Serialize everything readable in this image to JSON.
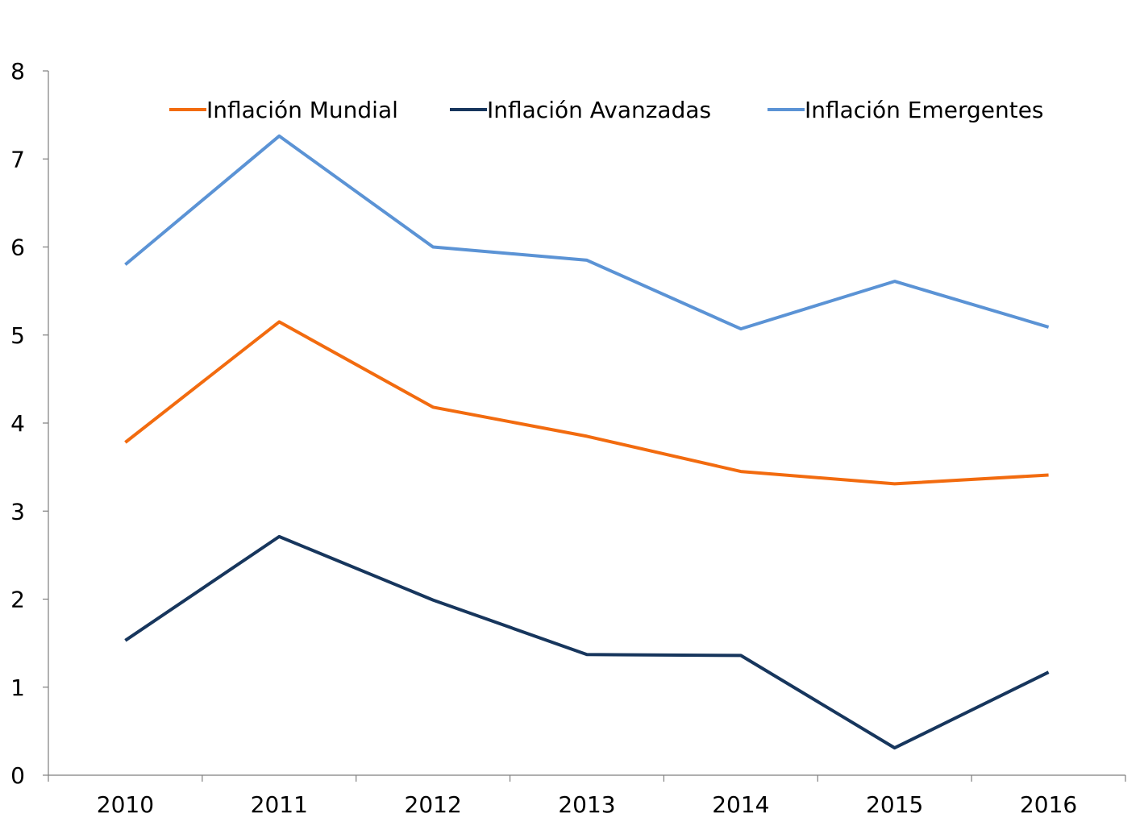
{
  "chart_data": {
    "type": "line",
    "title": "",
    "xlabel": "",
    "ylabel": "",
    "categories": [
      "2010",
      "2011",
      "2012",
      "2013",
      "2014",
      "2015",
      "2016"
    ],
    "ylim": [
      0,
      8
    ],
    "yticks": [
      "0",
      "1",
      "2",
      "3",
      "4",
      "5",
      "6",
      "7",
      "8"
    ],
    "grid": false,
    "legend_position": "top",
    "series": [
      {
        "name": "Inflación Mundial",
        "color": "#F26B0F",
        "values": [
          3.78,
          5.15,
          4.18,
          3.85,
          3.45,
          3.31,
          3.41
        ]
      },
      {
        "name": "Inflación Avanzadas",
        "color": "#17365D",
        "values": [
          1.53,
          2.71,
          1.99,
          1.37,
          1.36,
          0.31,
          1.17
        ]
      },
      {
        "name": "Inflación Emergentes",
        "color": "#5B93D5",
        "values": [
          5.8,
          7.26,
          6.0,
          5.85,
          5.07,
          5.61,
          5.09
        ]
      }
    ]
  }
}
